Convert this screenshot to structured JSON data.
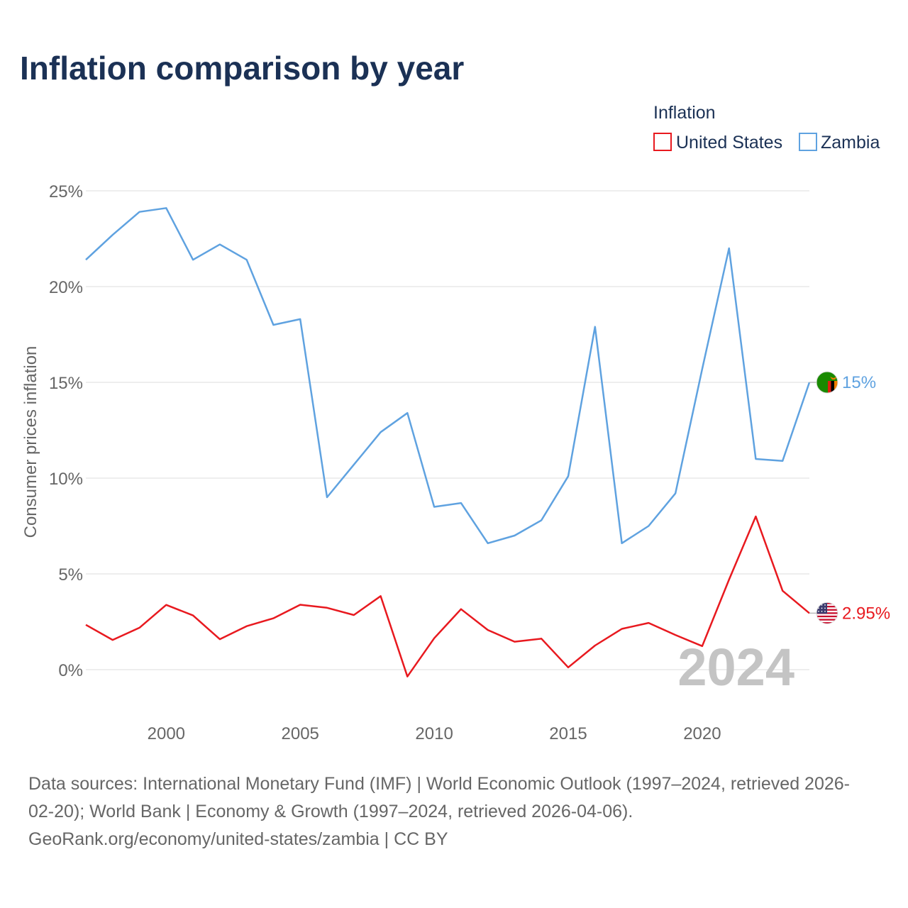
{
  "chart_data": {
    "type": "line",
    "title": "Inflation comparison by year",
    "ylabel": "Consumer prices inflation",
    "xlabel": "",
    "legend_title": "Inflation",
    "legend_position": "top-right",
    "watermark_year": "2024",
    "x": [
      1997,
      1998,
      1999,
      2000,
      2001,
      2002,
      2003,
      2004,
      2005,
      2006,
      2007,
      2008,
      2009,
      2010,
      2011,
      2012,
      2013,
      2014,
      2015,
      2016,
      2017,
      2018,
      2019,
      2020,
      2021,
      2022,
      2023,
      2024
    ],
    "xlim": [
      1997,
      2024
    ],
    "ylim": [
      -2.5,
      25
    ],
    "x_ticks": [
      2000,
      2005,
      2010,
      2015,
      2020
    ],
    "y_ticks": [
      0,
      5,
      10,
      15,
      20,
      25
    ],
    "y_tick_labels": [
      "0%",
      "5%",
      "10%",
      "15%",
      "20%",
      "25%"
    ],
    "grid": true,
    "series": [
      {
        "name": "United States",
        "color": "#e8191f",
        "end_label": "2.95%",
        "flag_icon": "us-flag-icon",
        "values": [
          2.34,
          1.55,
          2.19,
          3.38,
          2.83,
          1.59,
          2.27,
          2.68,
          3.39,
          3.23,
          2.85,
          3.84,
          -0.36,
          1.64,
          3.16,
          2.07,
          1.46,
          1.62,
          0.12,
          1.26,
          2.13,
          2.44,
          1.81,
          1.23,
          4.7,
          8.0,
          4.12,
          2.95
        ]
      },
      {
        "name": "Zambia",
        "color": "#5fa2e0",
        "end_label": "15%",
        "flag_icon": "zambia-flag-icon",
        "values": [
          21.4,
          22.7,
          23.9,
          24.1,
          21.4,
          22.2,
          21.4,
          18.0,
          18.3,
          9.0,
          10.7,
          12.4,
          13.4,
          8.5,
          8.7,
          6.6,
          7.0,
          7.8,
          10.1,
          17.9,
          6.6,
          7.5,
          9.2,
          15.7,
          22.0,
          11.0,
          10.9,
          15.0
        ]
      }
    ]
  },
  "footer": {
    "source_line1": "Data sources: International Monetary Fund (IMF) | World Economic Outlook (1997–2024, retrieved 2026-",
    "source_line2": "02-20); World Bank | Economy & Growth (1997–2024, retrieved 2026-04-06).",
    "source_line3": "GeoRank.org/economy/united-states/zambia | CC BY"
  }
}
